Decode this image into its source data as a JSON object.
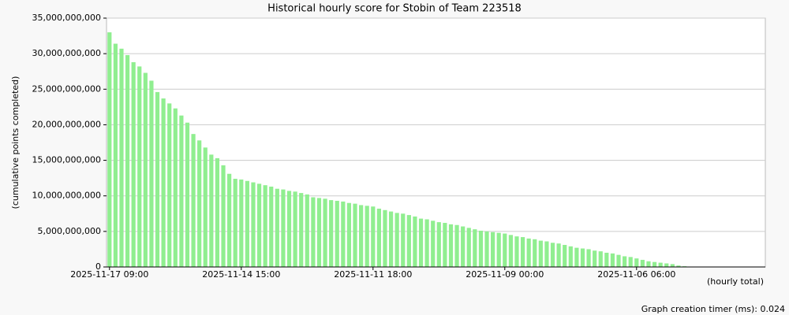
{
  "chart_data": {
    "type": "bar",
    "title": "Historical hourly score for Stobin of Team 223518",
    "y_label": "(cumulative points completed)",
    "x_label": "(hourly total)",
    "footer": "Graph creation timer (ms): 0.024",
    "color": "#90ee90",
    "grid": true,
    "ylim": [
      0,
      35000000000
    ],
    "yticks": [
      0,
      {
        "value": 5000000000,
        "label": "5,000,000,000"
      },
      {
        "value": 10000000000,
        "label": "10,000,000,000"
      },
      {
        "value": 15000000000,
        "label": "15,000,000,000"
      },
      {
        "value": 20000000000,
        "label": "20,000,000,000"
      },
      {
        "value": 25000000000,
        "label": "25,000,000,000"
      },
      {
        "value": 30000000000,
        "label": "30,000,000,000"
      },
      {
        "value": 35000000000,
        "label": "35,000,000,000"
      }
    ],
    "categories": [
      "2025-11-17 09:00",
      null,
      null,
      null,
      null,
      null,
      null,
      null,
      null,
      null,
      null,
      null,
      null,
      null,
      null,
      null,
      null,
      null,
      null,
      null,
      null,
      null,
      "2025-11-14 15:00",
      null,
      null,
      null,
      null,
      null,
      null,
      null,
      null,
      null,
      null,
      null,
      null,
      null,
      null,
      null,
      null,
      null,
      null,
      null,
      null,
      null,
      "2025-11-11 18:00",
      null,
      null,
      null,
      null,
      null,
      null,
      null,
      null,
      null,
      null,
      null,
      null,
      null,
      null,
      null,
      null,
      null,
      null,
      null,
      null,
      null,
      "2025-11-09 00:00",
      null,
      null,
      null,
      null,
      null,
      null,
      null,
      null,
      null,
      null,
      null,
      null,
      null,
      null,
      null,
      null,
      null,
      null,
      null,
      null,
      null,
      "2025-11-06 06:00",
      null,
      null,
      null,
      null,
      null,
      null,
      null,
      null,
      null,
      null,
      null,
      null,
      null,
      null,
      null,
      null,
      null,
      null,
      null,
      null,
      null
    ],
    "values": [
      33000000000,
      31400000000,
      30700000000,
      29800000000,
      28800000000,
      28200000000,
      27300000000,
      26200000000,
      24600000000,
      23700000000,
      23000000000,
      22300000000,
      21300000000,
      20300000000,
      18700000000,
      17800000000,
      16800000000,
      15800000000,
      15300000000,
      14300000000,
      13100000000,
      12400000000,
      12300000000,
      12100000000,
      11900000000,
      11700000000,
      11500000000,
      11300000000,
      11000000000,
      10900000000,
      10700000000,
      10600000000,
      10400000000,
      10200000000,
      9800000000,
      9700000000,
      9600000000,
      9400000000,
      9300000000,
      9200000000,
      9000000000,
      8900000000,
      8700000000,
      8600000000,
      8500000000,
      8200000000,
      8000000000,
      7800000000,
      7600000000,
      7500000000,
      7300000000,
      7100000000,
      6800000000,
      6700000000,
      6500000000,
      6300000000,
      6200000000,
      6000000000,
      5900000000,
      5700000000,
      5500000000,
      5300000000,
      5100000000,
      5000000000,
      4900000000,
      4800000000,
      4700000000,
      4500000000,
      4300000000,
      4200000000,
      4000000000,
      3900000000,
      3700000000,
      3600000000,
      3400000000,
      3300000000,
      3100000000,
      2900000000,
      2700000000,
      2600000000,
      2500000000,
      2300000000,
      2200000000,
      2000000000,
      1900000000,
      1700000000,
      1500000000,
      1400000000,
      1200000000,
      1000000000,
      800000000,
      700000000,
      600000000,
      500000000,
      400000000,
      200000000,
      100000000,
      50000000,
      50000000,
      50000000,
      50000000,
      20000000,
      0,
      0,
      0,
      0,
      0,
      0,
      0,
      0
    ]
  }
}
